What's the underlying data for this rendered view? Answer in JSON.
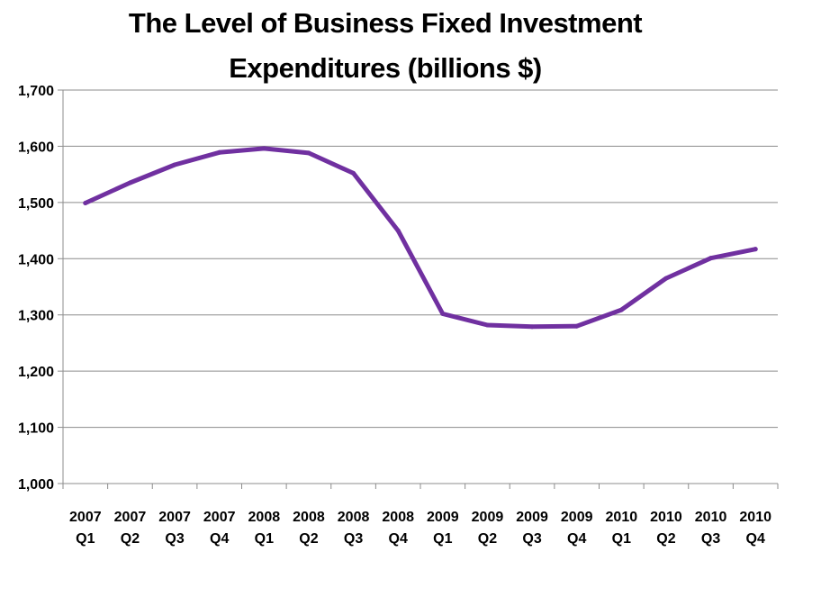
{
  "chart_data": {
    "type": "line",
    "title_lines": [
      "The Level of Business Fixed Investment",
      "Expenditures (billions $)"
    ],
    "categories": [
      [
        "2007",
        "Q1"
      ],
      [
        "2007",
        "Q2"
      ],
      [
        "2007",
        "Q3"
      ],
      [
        "2007",
        "Q4"
      ],
      [
        "2008",
        "Q1"
      ],
      [
        "2008",
        "Q2"
      ],
      [
        "2008",
        "Q3"
      ],
      [
        "2008",
        "Q4"
      ],
      [
        "2009",
        "Q1"
      ],
      [
        "2009",
        "Q2"
      ],
      [
        "2009",
        "Q3"
      ],
      [
        "2009",
        "Q4"
      ],
      [
        "2010",
        "Q1"
      ],
      [
        "2010",
        "Q2"
      ],
      [
        "2010",
        "Q3"
      ],
      [
        "2010",
        "Q4"
      ]
    ],
    "series": [
      {
        "color": "#7030A0",
        "values": [
          1499,
          1535,
          1567,
          1589,
          1596,
          1588,
          1552,
          1450,
          1302,
          1282,
          1279,
          1280,
          1309,
          1365,
          1401,
          1417
        ]
      }
    ],
    "ylim": [
      1000,
      1700
    ],
    "yticks": [
      1000,
      1100,
      1200,
      1300,
      1400,
      1500,
      1600,
      1700
    ],
    "ytick_labels": [
      "1,000",
      "1,100",
      "1,200",
      "1,300",
      "1,400",
      "1,500",
      "1,600",
      "1,700"
    ],
    "grid": true,
    "legend": "none"
  }
}
